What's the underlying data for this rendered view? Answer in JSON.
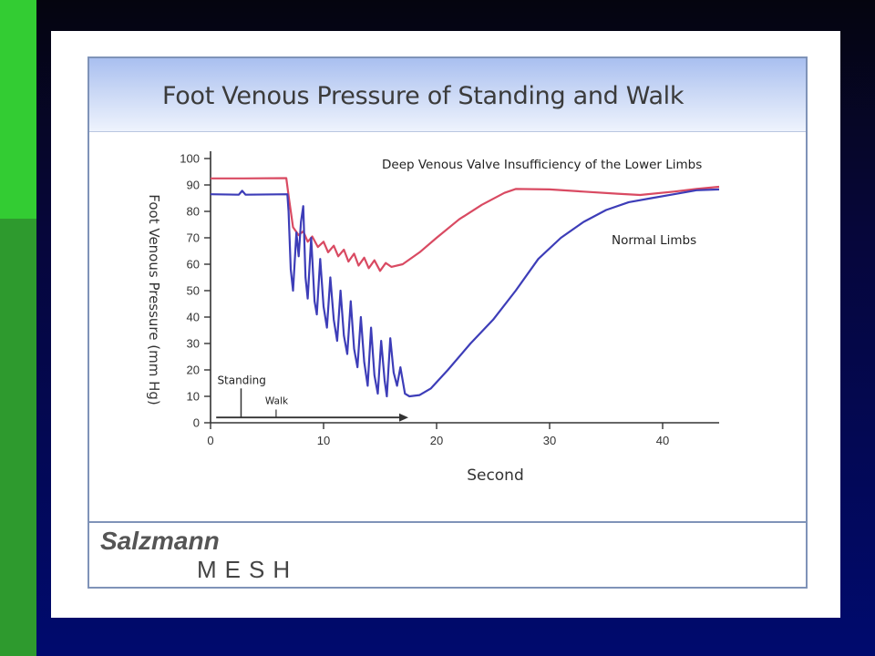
{
  "slide": {
    "title": "Foot Venous Pressure of Standing and Walk",
    "brand_name": "Salzmann",
    "brand_sub": "MESH"
  },
  "colors": {
    "accent_green_top": "#33cc33",
    "accent_green_bottom": "#2e9a2e",
    "header_band": "#c9d7f5",
    "frame_border": "#7f93b8",
    "insufficiency_series": "#d94a62",
    "normal_series": "#3d3db8"
  },
  "chart_data": {
    "type": "line",
    "title": "Foot Venous Pressure of Standing and Walk",
    "xlabel": "Second",
    "ylabel": "Foot Venous Pressure (mm Hg)",
    "xlim": [
      0,
      45
    ],
    "ylim": [
      0,
      100
    ],
    "x_ticks": [
      0,
      10,
      20,
      30,
      40
    ],
    "y_ticks": [
      0,
      10,
      20,
      30,
      40,
      50,
      60,
      70,
      80,
      90,
      100
    ],
    "grid": false,
    "annotations": [
      {
        "text": "Standing",
        "x": 2.7,
        "y": 15
      },
      {
        "text": "Walk",
        "x": 5.8,
        "y": 7
      },
      {
        "text": "Walk arrow",
        "x_start": 0.5,
        "x_end": 17.5,
        "y": 2
      }
    ],
    "series": [
      {
        "name": "Deep Venous Valve Insufficiency of the Lower Limbs",
        "color": "#d94a62",
        "points": [
          [
            0,
            92.5
          ],
          [
            3,
            92.5
          ],
          [
            6.7,
            92.6
          ],
          [
            6.9,
            86
          ],
          [
            7.3,
            74
          ],
          [
            7.8,
            71
          ],
          [
            8.2,
            72.5
          ],
          [
            8.6,
            68.5
          ],
          [
            9.0,
            70.5
          ],
          [
            9.5,
            66.5
          ],
          [
            10.0,
            68.5
          ],
          [
            10.4,
            64.5
          ],
          [
            10.9,
            67
          ],
          [
            11.3,
            63
          ],
          [
            11.8,
            65.5
          ],
          [
            12.2,
            61
          ],
          [
            12.7,
            64
          ],
          [
            13.1,
            59.5
          ],
          [
            13.6,
            62.5
          ],
          [
            14.0,
            58.5
          ],
          [
            14.5,
            61.5
          ],
          [
            15.0,
            57.5
          ],
          [
            15.5,
            60.5
          ],
          [
            16.0,
            59
          ],
          [
            17.0,
            60
          ],
          [
            18.5,
            64.5
          ],
          [
            20.0,
            70
          ],
          [
            22.0,
            77
          ],
          [
            24.0,
            82.5
          ],
          [
            26.0,
            87
          ],
          [
            27.0,
            88.5
          ],
          [
            30.0,
            88.3
          ],
          [
            33.0,
            87.5
          ],
          [
            36.0,
            86.7
          ],
          [
            38.0,
            86.2
          ],
          [
            41.0,
            87.5
          ],
          [
            43.0,
            88.5
          ],
          [
            45.0,
            89.3
          ]
        ]
      },
      {
        "name": "Normal Limbs",
        "color": "#3d3db8",
        "points": [
          [
            0,
            86.5
          ],
          [
            2.5,
            86.3
          ],
          [
            2.8,
            87.8
          ],
          [
            3.1,
            86.3
          ],
          [
            6.8,
            86.5
          ],
          [
            6.9,
            80
          ],
          [
            7.1,
            58
          ],
          [
            7.3,
            50
          ],
          [
            7.6,
            72
          ],
          [
            7.8,
            63
          ],
          [
            8.0,
            76
          ],
          [
            8.2,
            82
          ],
          [
            8.4,
            55
          ],
          [
            8.6,
            47
          ],
          [
            8.9,
            70
          ],
          [
            9.2,
            46
          ],
          [
            9.4,
            41
          ],
          [
            9.7,
            62
          ],
          [
            10.0,
            44
          ],
          [
            10.3,
            36
          ],
          [
            10.6,
            55
          ],
          [
            10.9,
            39
          ],
          [
            11.2,
            31
          ],
          [
            11.5,
            50
          ],
          [
            11.8,
            33
          ],
          [
            12.1,
            26
          ],
          [
            12.4,
            46
          ],
          [
            12.7,
            28
          ],
          [
            13.0,
            21
          ],
          [
            13.3,
            40
          ],
          [
            13.6,
            23
          ],
          [
            13.9,
            14
          ],
          [
            14.2,
            36
          ],
          [
            14.5,
            18
          ],
          [
            14.8,
            11
          ],
          [
            15.1,
            31
          ],
          [
            15.4,
            16
          ],
          [
            15.6,
            10
          ],
          [
            15.9,
            32
          ],
          [
            16.2,
            19
          ],
          [
            16.5,
            14
          ],
          [
            16.8,
            21
          ],
          [
            17.2,
            11
          ],
          [
            17.6,
            10
          ],
          [
            18.5,
            10.5
          ],
          [
            19.5,
            13
          ],
          [
            21.0,
            20
          ],
          [
            23.0,
            30
          ],
          [
            25.0,
            39
          ],
          [
            27.0,
            50
          ],
          [
            29.0,
            62
          ],
          [
            31.0,
            70
          ],
          [
            33.0,
            76
          ],
          [
            35.0,
            80.5
          ],
          [
            37.0,
            83.5
          ],
          [
            39.0,
            85
          ],
          [
            41.0,
            86.5
          ],
          [
            43.0,
            88
          ],
          [
            45.0,
            88.3
          ]
        ]
      }
    ]
  }
}
